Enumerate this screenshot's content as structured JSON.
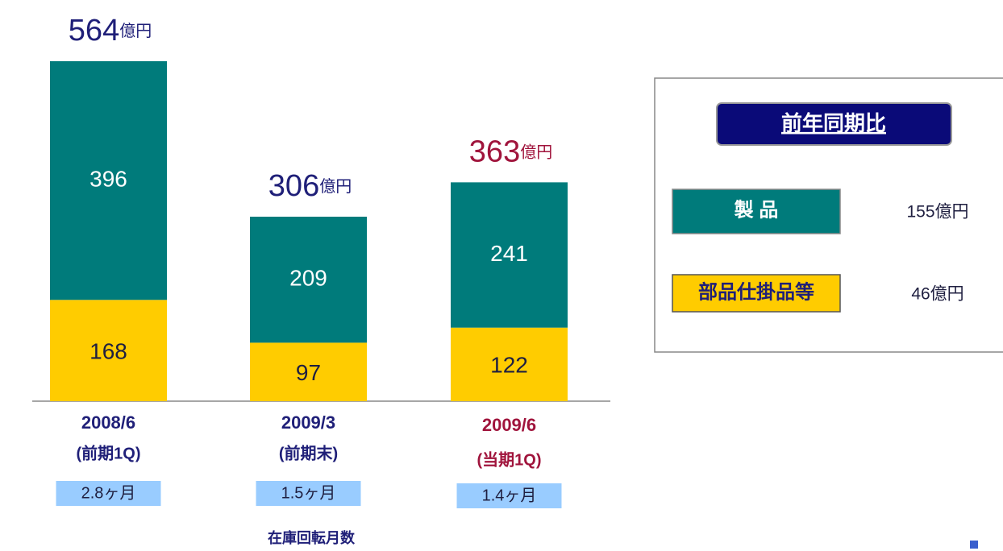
{
  "chart_data": {
    "type": "bar",
    "stacked": true,
    "categories": [
      "2008/6",
      "2009/3",
      "2009/6"
    ],
    "sublabels": [
      "(前期1Q)",
      "(前期末)",
      "(当期1Q)"
    ],
    "category_colors": [
      "#1f1f78",
      "#1f1f78",
      "#a0143c"
    ],
    "series": [
      {
        "name": "部品仕掛品等",
        "color": "#ffcc00",
        "values": [
          168,
          97,
          122
        ]
      },
      {
        "name": "製 品",
        "color": "#007b7b",
        "values": [
          396,
          209,
          241
        ]
      }
    ],
    "totals": [
      564,
      306,
      363
    ],
    "total_unit": "億円",
    "ylim": [
      0,
      600
    ],
    "turnover": {
      "title": "在庫回転月数",
      "labels": [
        "2.8ヶ月",
        "1.5ヶ月",
        "1.4ヶ月"
      ]
    },
    "comparison": {
      "title": "前年同期比",
      "rows": [
        {
          "name": "製 品",
          "value": "155億円"
        },
        {
          "name": "部品仕掛品等",
          "value": "46億円"
        }
      ]
    }
  }
}
